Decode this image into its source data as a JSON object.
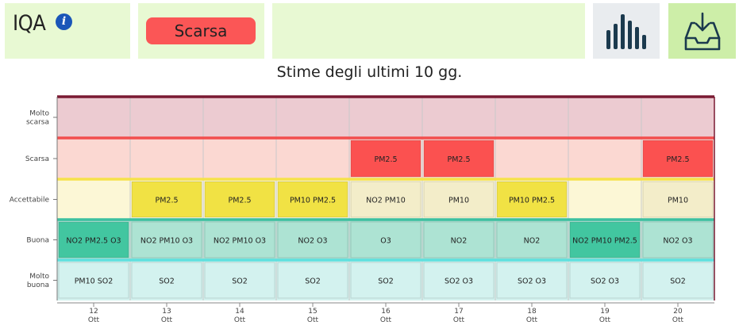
{
  "header": {
    "title": "IQA",
    "info_icon": "info-icon",
    "status": "Scarsa",
    "chart_icon": "bar-chart-icon",
    "download_icon": "download-tray-icon"
  },
  "subtitle": "Stime degli ultimi 10 gg.",
  "colors": {
    "panel": "#e8f9d3",
    "download_panel": "#cdeea8",
    "status_badge": "#fb5656",
    "icon_dark": "#1b3a4e"
  },
  "chart_data": {
    "type": "heatmap",
    "title": "Stime degli ultimi 10 gg.",
    "bands": [
      {
        "label": "Molto scarsa",
        "fill": "#eccbd1",
        "line": "#7a1a32"
      },
      {
        "label": "Scarsa",
        "fill": "#fbd8d2",
        "line": "#f24e4e"
      },
      {
        "label": "Accettabile",
        "fill": "#fcf7d6",
        "line": "#f6e24a"
      },
      {
        "label": "Buona",
        "fill": "#ace1d3",
        "line": "#3cc0a0"
      },
      {
        "label": "Molto buona",
        "fill": "#d3f2ef",
        "line": "#5fe0de"
      }
    ],
    "days": [
      {
        "day": "12",
        "month": "Ott"
      },
      {
        "day": "13",
        "month": "Ott"
      },
      {
        "day": "14",
        "month": "Ott"
      },
      {
        "day": "15",
        "month": "Ott"
      },
      {
        "day": "16",
        "month": "Ott"
      },
      {
        "day": "17",
        "month": "Ott"
      },
      {
        "day": "18",
        "month": "Ott"
      },
      {
        "day": "19",
        "month": "Ott"
      },
      {
        "day": "20",
        "month": "Ott"
      }
    ],
    "cells": [
      [
        "",
        "",
        "",
        "",
        "",
        "",
        "",
        "",
        ""
      ],
      [
        "",
        "",
        "",
        "",
        "PM2.5",
        "PM2.5",
        "",
        "",
        "PM2.5"
      ],
      [
        "",
        "PM2.5",
        "PM2.5",
        "PM10 PM2.5",
        "NO2 PM10",
        "PM10",
        "PM10 PM2.5",
        "",
        "PM10"
      ],
      [
        "NO2 PM2.5 O3",
        "NO2 PM10 O3",
        "NO2 PM10 O3",
        "NO2 O3",
        "O3",
        "NO2",
        "NO2",
        "NO2 PM10 PM2.5",
        "NO2 O3"
      ],
      [
        "PM10 SO2",
        "SO2",
        "SO2",
        "SO2",
        "SO2",
        "SO2 O3",
        "SO2 O3",
        "SO2 O3",
        "SO2"
      ]
    ],
    "overall_level": [
      "Buona",
      "Accettabile",
      "Accettabile",
      "Accettabile",
      "Scarsa",
      "Scarsa",
      "Accettabile",
      "Buona",
      "Scarsa"
    ],
    "level_colors": {
      "Scarsa": "#fb5150",
      "Accettabile": "#f1e244",
      "Buona": "#42c6a0",
      "secondary": {
        "Accettabile": "#f3edc9",
        "Buona": "#ade3d3",
        "Molto buona": "#d3f2ef"
      }
    }
  }
}
